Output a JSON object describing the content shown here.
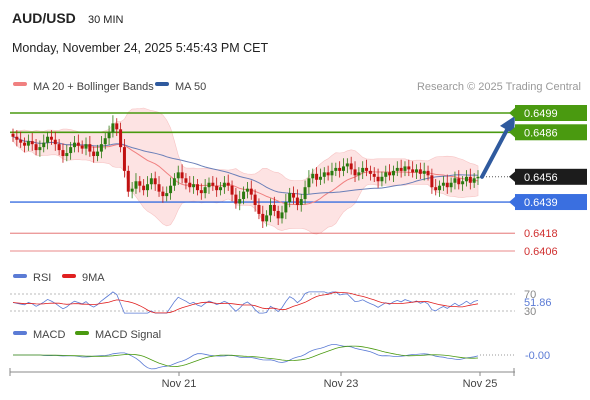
{
  "header": {
    "symbol": "AUD/USD",
    "timeframe": "30 MIN",
    "datetime": "Monday, November 24, 2025 5:45:43 PM CET"
  },
  "legend_main": [
    {
      "label": "MA 20 + Bollinger Bands",
      "color": "#f08080"
    },
    {
      "label": "MA 50",
      "color": "#2f5a9e"
    }
  ],
  "copyright": "Research © 2025 Trading Central",
  "rsi_panel": {
    "legend": [
      {
        "label": "RSI",
        "color": "#5b7bd5"
      },
      {
        "label": "9MA",
        "color": "#e02020"
      }
    ],
    "levels_labels": [
      "70",
      "30"
    ],
    "current_label": "51.86"
  },
  "macd_panel": {
    "legend": [
      {
        "label": "MACD",
        "color": "#5b7bd5"
      },
      {
        "label": "MACD Signal",
        "color": "#4a9a10"
      }
    ],
    "current_label": "-0.00"
  },
  "colors": {
    "resistance": "#4a9a10",
    "support": "#3a6fe0",
    "target": "#e06060",
    "up_candle": "#2a7a10",
    "down_candle": "#c01010",
    "bands_fill": "#fde3e3",
    "arrow": "#2f5a9e"
  },
  "chart_data": {
    "type": "candlestick",
    "title": "AUD/USD 30 MIN",
    "x_tick_labels": [
      "Nov 21",
      "Nov 23",
      "Nov 25"
    ],
    "ylim": [
      0.6395,
      0.6505
    ],
    "last_price": {
      "value": 0.6456,
      "label": "0.6456"
    },
    "levels": [
      {
        "value": 0.6499,
        "label": "0.6499",
        "kind": "resistance"
      },
      {
        "value": 0.6486,
        "label": "0.6486",
        "kind": "resistance"
      },
      {
        "value": 0.6439,
        "label": "0.6439",
        "kind": "support"
      },
      {
        "value": 0.6418,
        "label": "0.6418",
        "kind": "target"
      },
      {
        "value": 0.6406,
        "label": "0.6406",
        "kind": "target"
      }
    ],
    "close_series": [
      0.6483,
      0.6481,
      0.6479,
      0.6477,
      0.648,
      0.6478,
      0.6474,
      0.6476,
      0.6479,
      0.6483,
      0.6481,
      0.6478,
      0.6474,
      0.647,
      0.6472,
      0.6476,
      0.6479,
      0.6477,
      0.6475,
      0.6478,
      0.6473,
      0.647,
      0.6473,
      0.6478,
      0.6482,
      0.6486,
      0.6492,
      0.6488,
      0.6476,
      0.646,
      0.6446,
      0.6448,
      0.6453,
      0.645,
      0.6447,
      0.6451,
      0.6455,
      0.6451,
      0.6446,
      0.6443,
      0.6445,
      0.645,
      0.6455,
      0.6459,
      0.6455,
      0.6452,
      0.6449,
      0.6451,
      0.6447,
      0.6445,
      0.6449,
      0.6452,
      0.645,
      0.6447,
      0.6449,
      0.6452,
      0.645,
      0.6444,
      0.6438,
      0.6441,
      0.6446,
      0.6448,
      0.6444,
      0.6437,
      0.6431,
      0.6426,
      0.643,
      0.6437,
      0.6433,
      0.6428,
      0.6432,
      0.6439,
      0.6445,
      0.6442,
      0.6437,
      0.6441,
      0.6449,
      0.6455,
      0.6458,
      0.6454,
      0.6456,
      0.6459,
      0.6457,
      0.646,
      0.6462,
      0.646,
      0.6463,
      0.6465,
      0.6461,
      0.6457,
      0.6459,
      0.6462,
      0.646,
      0.6458,
      0.6456,
      0.6453,
      0.6456,
      0.6459,
      0.6457,
      0.646,
      0.6462,
      0.646,
      0.6463,
      0.6461,
      0.6459,
      0.6461,
      0.6458,
      0.646,
      0.6457,
      0.6449,
      0.6447,
      0.645,
      0.6452,
      0.6449,
      0.6452,
      0.6455,
      0.6451,
      0.6453,
      0.6456,
      0.6452,
      0.6455,
      0.6456
    ],
    "forecast_arrow": {
      "from": 0.6456,
      "to": 0.6493
    }
  }
}
